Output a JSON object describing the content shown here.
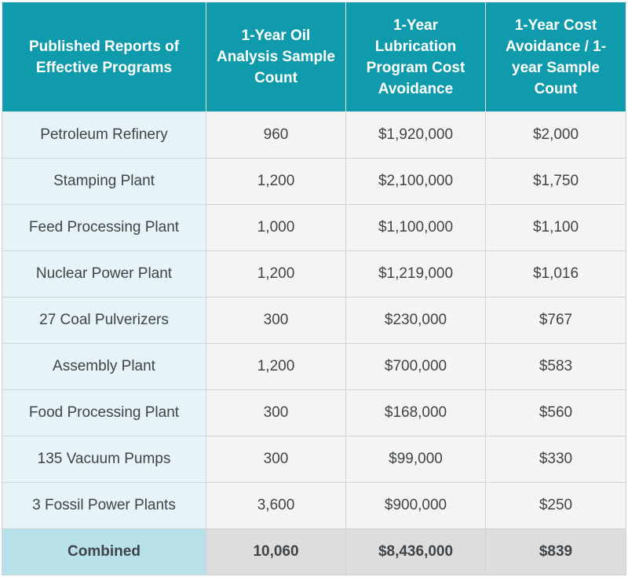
{
  "table": {
    "headers": [
      "Published Reports of Effective Programs",
      "1-Year Oil Analysis Sample Count",
      "1-Year Lubrication Program Cost Avoidance",
      "1-Year Cost Avoidance / 1-year Sample Count"
    ],
    "rows": [
      [
        "Petroleum Refinery",
        "960",
        "$1,920,000",
        "$2,000"
      ],
      [
        "Stamping Plant",
        "1,200",
        "$2,100,000",
        "$1,750"
      ],
      [
        "Feed Processing Plant",
        "1,000",
        "$1,100,000",
        "$1,100"
      ],
      [
        "Nuclear Power Plant",
        "1,200",
        "$1,219,000",
        "$1,016"
      ],
      [
        "27 Coal Pulverizers",
        "300",
        "$230,000",
        "$767"
      ],
      [
        "Assembly Plant",
        "1,200",
        "$700,000",
        "$583"
      ],
      [
        "Food Processing Plant",
        "300",
        "$168,000",
        "$560"
      ],
      [
        "135 Vacuum Pumps",
        "300",
        "$99,000",
        "$330"
      ],
      [
        "3 Fossil Power Plants",
        "3,600",
        "$900,000",
        "$250"
      ]
    ],
    "total": [
      "Combined",
      "10,060",
      "$8,436,000",
      "$839"
    ]
  },
  "colors": {
    "header_bg": "#0f9bab",
    "first_col_bg": "#e6f3f7",
    "cell_bg": "#f4f4f4",
    "total_first_bg": "#b8e1ea",
    "total_cell_bg": "#dddddd"
  }
}
